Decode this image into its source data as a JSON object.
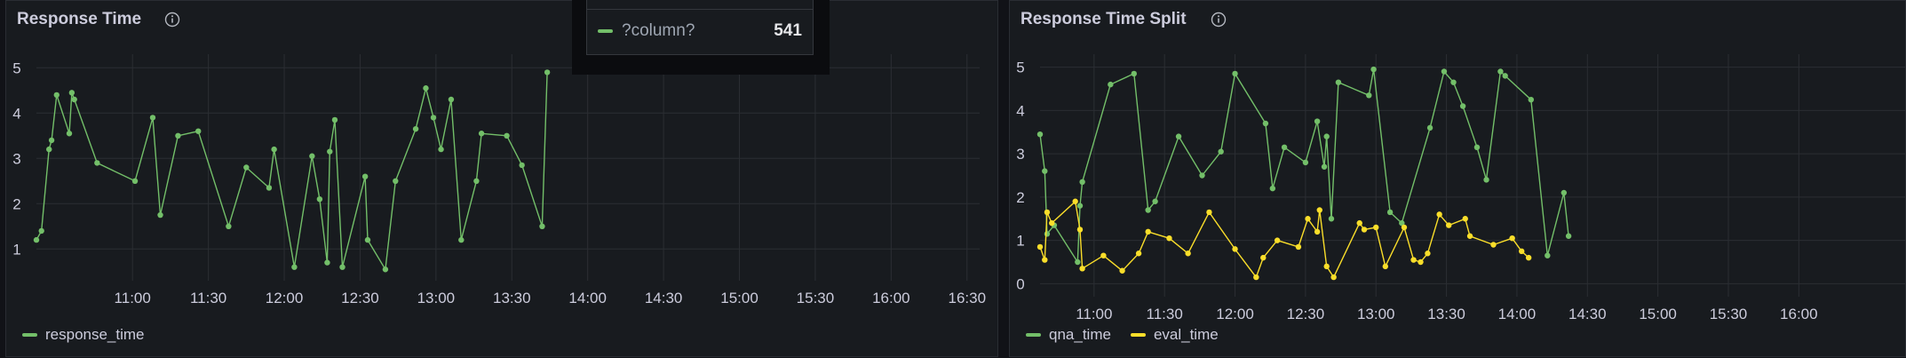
{
  "panels": [
    {
      "title": "Response Time",
      "legend": [
        {
          "label": "response_time",
          "color": "#73bf69"
        }
      ]
    },
    {
      "title": "Response Time Split",
      "legend": [
        {
          "label": "qna_time",
          "color": "#73bf69"
        },
        {
          "label": "eval_time",
          "color": "#fade2a"
        }
      ]
    }
  ],
  "tooltip": {
    "series_name": "?column?",
    "value": "541",
    "color": "#73bf69"
  },
  "chart_data": [
    {
      "type": "line",
      "title": "Response Time",
      "x_unit": "minutes since 00:00",
      "xlim": [
        622,
        995
      ],
      "ylim": [
        0.3,
        5.3
      ],
      "xticks": [
        {
          "t": 660,
          "label": "11:00"
        },
        {
          "t": 690,
          "label": "11:30"
        },
        {
          "t": 720,
          "label": "12:00"
        },
        {
          "t": 750,
          "label": "12:30"
        },
        {
          "t": 780,
          "label": "13:00"
        },
        {
          "t": 810,
          "label": "13:30"
        },
        {
          "t": 840,
          "label": "14:00"
        },
        {
          "t": 870,
          "label": "14:30"
        },
        {
          "t": 900,
          "label": "15:00"
        },
        {
          "t": 930,
          "label": "15:30"
        },
        {
          "t": 960,
          "label": "16:00"
        },
        {
          "t": 990,
          "label": "16:30"
        }
      ],
      "yticks": [
        1,
        2,
        3,
        4,
        5
      ],
      "grid": true,
      "legend_position": "bottom-left",
      "series": [
        {
          "name": "response_time",
          "color": "#73bf69",
          "points": [
            [
              622,
              1.2
            ],
            [
              624,
              1.4
            ],
            [
              627,
              3.2
            ],
            [
              628,
              3.4
            ],
            [
              630,
              4.4
            ],
            [
              635,
              3.55
            ],
            [
              636,
              4.45
            ],
            [
              637,
              4.3
            ],
            [
              646,
              2.9
            ],
            [
              661,
              2.5
            ],
            [
              668,
              3.9
            ],
            [
              671,
              1.75
            ],
            [
              678,
              3.5
            ],
            [
              686,
              3.6
            ],
            [
              698,
              1.5
            ],
            [
              705,
              2.8
            ],
            [
              714,
              2.35
            ],
            [
              716,
              3.2
            ],
            [
              724,
              0.6
            ],
            [
              731,
              3.05
            ],
            [
              734,
              2.1
            ],
            [
              737,
              0.7
            ],
            [
              738,
              3.15
            ],
            [
              740,
              3.85
            ],
            [
              743,
              0.6
            ],
            [
              752,
              2.6
            ],
            [
              753,
              1.2
            ],
            [
              760,
              0.55
            ],
            [
              764,
              2.5
            ],
            [
              772,
              3.65
            ],
            [
              776,
              4.55
            ],
            [
              779,
              3.9
            ],
            [
              782,
              3.2
            ],
            [
              786,
              4.3
            ],
            [
              790,
              1.2
            ],
            [
              796,
              2.5
            ],
            [
              798,
              3.55
            ],
            [
              808,
              3.5
            ],
            [
              814,
              2.85
            ],
            [
              822,
              1.5
            ],
            [
              824,
              4.9
            ]
          ]
        }
      ]
    },
    {
      "type": "line",
      "title": "Response Time Split",
      "x_unit": "minutes since 00:00",
      "xlim": [
        637,
        1006
      ],
      "ylim": [
        -0.3,
        5.3
      ],
      "xticks": [
        {
          "t": 660,
          "label": "11:00"
        },
        {
          "t": 690,
          "label": "11:30"
        },
        {
          "t": 720,
          "label": "12:00"
        },
        {
          "t": 750,
          "label": "12:30"
        },
        {
          "t": 780,
          "label": "13:00"
        },
        {
          "t": 810,
          "label": "13:30"
        },
        {
          "t": 840,
          "label": "14:00"
        },
        {
          "t": 870,
          "label": "14:30"
        },
        {
          "t": 900,
          "label": "15:00"
        },
        {
          "t": 930,
          "label": "15:30"
        },
        {
          "t": 960,
          "label": "16:00"
        }
      ],
      "yticks": [
        0,
        1,
        2,
        3,
        4,
        5
      ],
      "grid": true,
      "legend_position": "bottom-left",
      "series": [
        {
          "name": "qna_time",
          "color": "#73bf69",
          "points": [
            [
              637,
              3.45
            ],
            [
              639,
              2.6
            ],
            [
              640,
              1.15
            ],
            [
              643,
              1.35
            ],
            [
              653,
              0.5
            ],
            [
              654,
              1.8
            ],
            [
              655,
              2.35
            ],
            [
              667,
              4.6
            ],
            [
              677,
              4.85
            ],
            [
              683,
              1.7
            ],
            [
              686,
              1.9
            ],
            [
              696,
              3.4
            ],
            [
              706,
              2.5
            ],
            [
              714,
              3.05
            ],
            [
              720,
              4.85
            ],
            [
              733,
              3.7
            ],
            [
              736,
              2.2
            ],
            [
              741,
              3.15
            ],
            [
              750,
              2.8
            ],
            [
              755,
              3.75
            ],
            [
              758,
              2.7
            ],
            [
              759,
              3.4
            ],
            [
              761,
              1.5
            ],
            [
              764,
              4.65
            ],
            [
              777,
              4.35
            ],
            [
              779,
              4.95
            ],
            [
              786,
              1.65
            ],
            [
              791,
              1.4
            ],
            [
              803,
              3.6
            ],
            [
              809,
              4.9
            ],
            [
              813,
              4.65
            ],
            [
              817,
              4.1
            ],
            [
              823,
              3.15
            ],
            [
              827,
              2.4
            ],
            [
              833,
              4.9
            ],
            [
              835,
              4.8
            ],
            [
              846,
              4.25
            ],
            [
              853,
              0.65
            ],
            [
              860,
              2.1
            ],
            [
              862,
              1.1
            ]
          ]
        },
        {
          "name": "eval_time",
          "color": "#fade2a",
          "points": [
            [
              637,
              0.85
            ],
            [
              639,
              0.55
            ],
            [
              640,
              1.65
            ],
            [
              642,
              1.4
            ],
            [
              652,
              1.9
            ],
            [
              654,
              1.25
            ],
            [
              655,
              0.35
            ],
            [
              664,
              0.65
            ],
            [
              672,
              0.3
            ],
            [
              679,
              0.7
            ],
            [
              683,
              1.2
            ],
            [
              692,
              1.05
            ],
            [
              700,
              0.7
            ],
            [
              709,
              1.65
            ],
            [
              720,
              0.8
            ],
            [
              729,
              0.15
            ],
            [
              732,
              0.6
            ],
            [
              738,
              1.0
            ],
            [
              747,
              0.85
            ],
            [
              751,
              1.5
            ],
            [
              755,
              1.2
            ],
            [
              756,
              1.7
            ],
            [
              759,
              0.4
            ],
            [
              762,
              0.15
            ],
            [
              773,
              1.4
            ],
            [
              775,
              1.25
            ],
            [
              780,
              1.3
            ],
            [
              784,
              0.4
            ],
            [
              792,
              1.3
            ],
            [
              796,
              0.55
            ],
            [
              799,
              0.5
            ],
            [
              802,
              0.7
            ],
            [
              807,
              1.6
            ],
            [
              811,
              1.35
            ],
            [
              818,
              1.5
            ],
            [
              820,
              1.1
            ],
            [
              830,
              0.9
            ],
            [
              838,
              1.05
            ],
            [
              842,
              0.75
            ],
            [
              845,
              0.6
            ]
          ]
        }
      ]
    }
  ]
}
